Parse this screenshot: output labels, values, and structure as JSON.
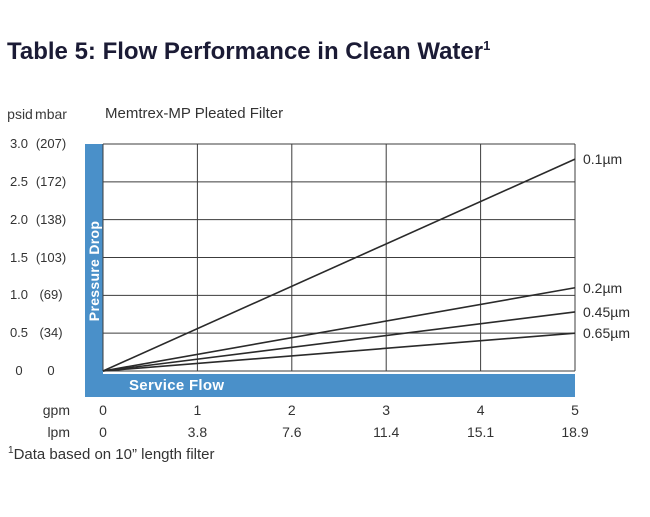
{
  "page": {
    "title": "Table 5: Flow Performance in Clean Water",
    "title_sup": "1",
    "footnote_sup": "1",
    "footnote": "Data based on 10” length filter"
  },
  "chart_data": {
    "type": "line",
    "title": "Memtrex-MP Pleated Filter",
    "legend_position": "right-line-end-labels",
    "grid": true,
    "x_axis": {
      "axis_title": "Service Flow",
      "range": [
        0,
        5
      ],
      "rows": [
        {
          "label": "gpm",
          "values": [
            "0",
            "1",
            "2",
            "3",
            "4",
            "5"
          ]
        },
        {
          "label": "lpm",
          "values": [
            "0",
            "3.8",
            "7.6",
            "11.4",
            "15.1",
            "18.9"
          ]
        }
      ]
    },
    "y_axis": {
      "axis_title": "Pressure Drop",
      "unit_labels": [
        "psid",
        "mbar"
      ],
      "range": [
        0,
        3
      ],
      "ticks": [
        {
          "value": 3.0,
          "psid": "3.0",
          "mbar": "(207)"
        },
        {
          "value": 2.5,
          "psid": "2.5",
          "mbar": "(172)"
        },
        {
          "value": 2.0,
          "psid": "2.0",
          "mbar": "(138)"
        },
        {
          "value": 1.5,
          "psid": "1.5",
          "mbar": "(103)"
        },
        {
          "value": 1.0,
          "psid": "1.0",
          "mbar": "(69)"
        },
        {
          "value": 0.5,
          "psid": "0.5",
          "mbar": "(34)"
        },
        {
          "value": 0,
          "psid": "0",
          "mbar": "0"
        }
      ]
    },
    "series": [
      {
        "name": "0.1µm",
        "x": [
          0,
          5
        ],
        "y": [
          0,
          2.8
        ]
      },
      {
        "name": "0.2µm",
        "x": [
          0,
          5
        ],
        "y": [
          0,
          1.1
        ]
      },
      {
        "name": "0.45µm",
        "x": [
          0,
          5
        ],
        "y": [
          0,
          0.78
        ]
      },
      {
        "name": "0.65µm",
        "x": [
          0,
          5
        ],
        "y": [
          0,
          0.5
        ]
      }
    ],
    "colors": {
      "accent_blue": "#4a90c9",
      "line": "#2a2a2a",
      "grid": "#3c3c3c"
    }
  }
}
